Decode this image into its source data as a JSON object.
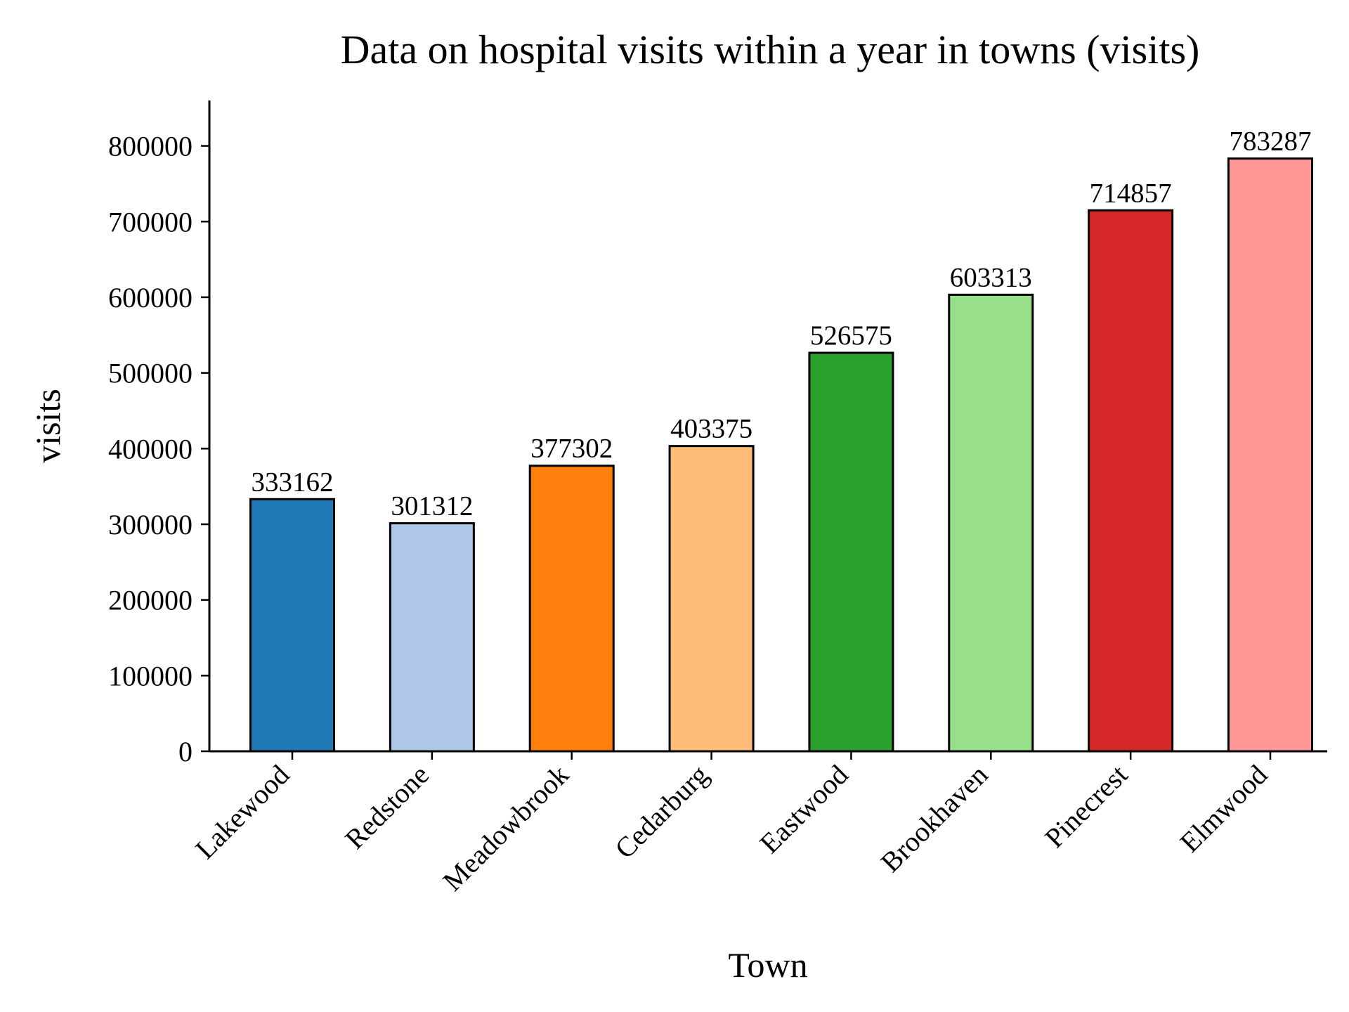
{
  "chart_data": {
    "type": "bar",
    "title": "Data on hospital visits within a year in towns (visits)",
    "xlabel": "Town",
    "ylabel": "visits",
    "categories": [
      "Lakewood",
      "Redstone",
      "Meadowbrook",
      "Cedarburg",
      "Eastwood",
      "Brookhaven",
      "Pinecrest",
      "Elmwood"
    ],
    "values": [
      333162,
      301312,
      377302,
      403375,
      526575,
      603313,
      714857,
      783287
    ],
    "value_labels": [
      "333162",
      "301312",
      "377302",
      "403375",
      "526575",
      "603313",
      "714857",
      "783287"
    ],
    "colors": [
      "#1f77b4",
      "#aec7e8",
      "#ff7f0e",
      "#ffbb78",
      "#2ca02c",
      "#98df8a",
      "#d62728",
      "#ff9896"
    ],
    "ylim": [
      0,
      860000
    ],
    "yticks": [
      0,
      100000,
      200000,
      300000,
      400000,
      500000,
      600000,
      700000,
      800000
    ],
    "ytick_labels": [
      "0",
      "100000",
      "200000",
      "300000",
      "400000",
      "500000",
      "600000",
      "700000",
      "800000"
    ],
    "grid": false,
    "legend": false
  }
}
